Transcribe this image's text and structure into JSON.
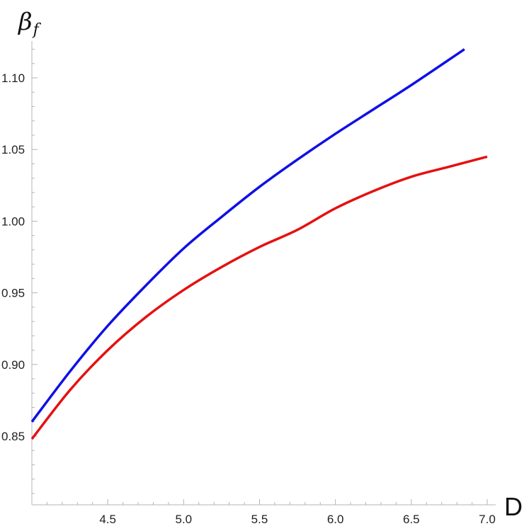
{
  "chart_data": {
    "type": "line",
    "xlabel": "D",
    "ylabel": {
      "base": "β",
      "subscript": "f"
    },
    "xlim": [
      4.0,
      7.0
    ],
    "ylim": [
      0.8,
      1.125
    ],
    "x_ticks": [
      4.5,
      5.0,
      5.5,
      6.0,
      6.5,
      7.0
    ],
    "x_tick_labels": [
      "4.5",
      "5.0",
      "5.5",
      "6.0",
      "6.5",
      "7.0"
    ],
    "y_ticks": [
      0.85,
      0.9,
      0.95,
      1.0,
      1.05,
      1.1
    ],
    "y_tick_labels": [
      "0.85",
      "0.90",
      "0.95",
      "1.00",
      "1.05",
      "1.10"
    ],
    "grid": false,
    "series": [
      {
        "color": "#1010e6",
        "points": [
          [
            4.0,
            0.86
          ],
          [
            4.25,
            0.895
          ],
          [
            4.5,
            0.927
          ],
          [
            4.75,
            0.955
          ],
          [
            5.0,
            0.981
          ],
          [
            5.25,
            1.003
          ],
          [
            5.5,
            1.024
          ],
          [
            5.75,
            1.043
          ],
          [
            6.0,
            1.061
          ],
          [
            6.25,
            1.078
          ],
          [
            6.5,
            1.095
          ],
          [
            6.85,
            1.12
          ]
        ]
      },
      {
        "color": "#e61010",
        "points": [
          [
            4.0,
            0.848
          ],
          [
            4.25,
            0.882
          ],
          [
            4.5,
            0.91
          ],
          [
            4.75,
            0.933
          ],
          [
            5.0,
            0.952
          ],
          [
            5.25,
            0.968
          ],
          [
            5.5,
            0.982
          ],
          [
            5.75,
            0.994
          ],
          [
            6.0,
            1.009
          ],
          [
            6.25,
            1.021
          ],
          [
            6.5,
            1.031
          ],
          [
            6.75,
            1.038
          ],
          [
            7.0,
            1.045
          ]
        ]
      }
    ]
  }
}
